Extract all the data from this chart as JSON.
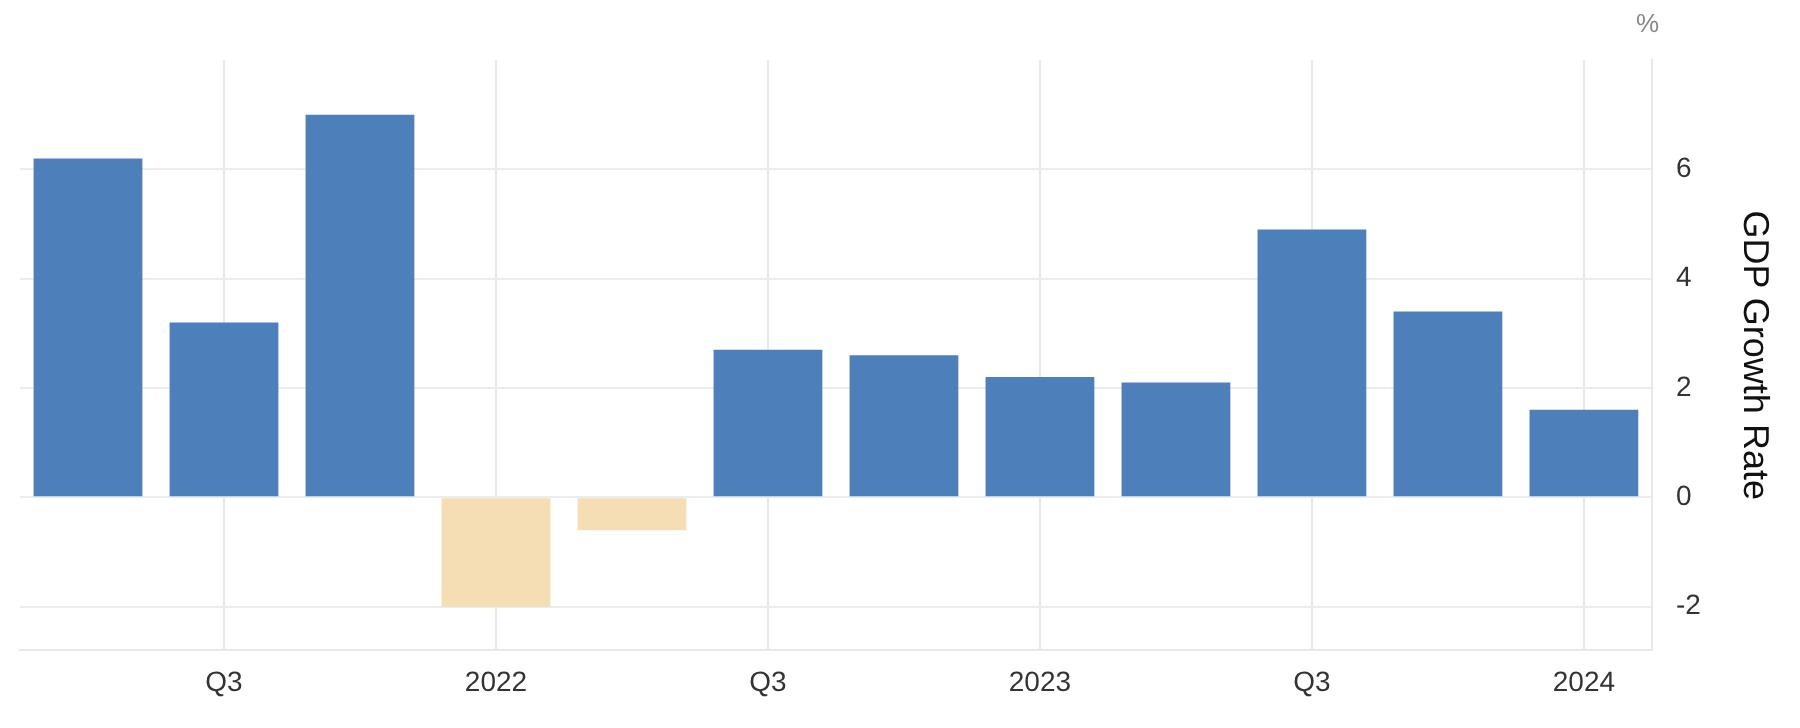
{
  "chart_data": {
    "type": "bar",
    "ylabel": "GDP Growth Rate",
    "annotations": [
      "%"
    ],
    "categories": [
      null,
      "Q3",
      null,
      "2022",
      null,
      "Q3",
      null,
      "2023",
      null,
      "Q3",
      null,
      "2024"
    ],
    "values": [
      6.2,
      3.2,
      7.0,
      -2.0,
      -0.6,
      2.7,
      2.6,
      2.2,
      2.1,
      4.9,
      3.4,
      1.6
    ],
    "colors": [
      "#4d80bb",
      "#4d80bb",
      "#4d80bb",
      "#f5deb3",
      "#f5deb3",
      "#4d80bb",
      "#4d80bb",
      "#4d80bb",
      "#4d80bb",
      "#4d80bb",
      "#4d80bb",
      "#4d80bb"
    ],
    "ylim": [
      -2.8,
      8
    ],
    "yticks": [
      -2,
      0,
      2,
      4,
      6
    ],
    "grid": true,
    "legend": false
  }
}
